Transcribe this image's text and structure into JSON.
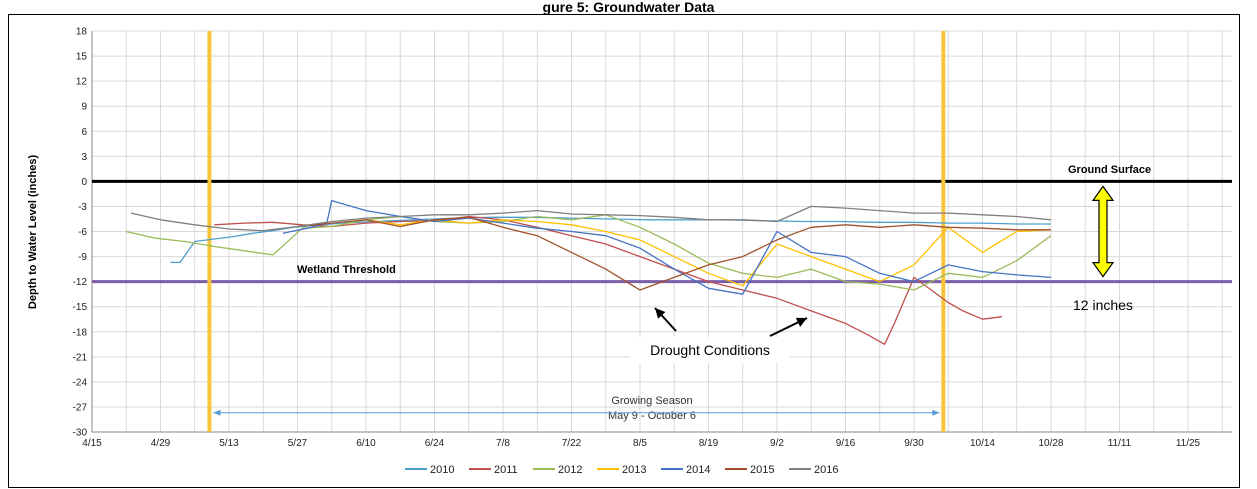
{
  "chart_data": {
    "type": "line",
    "title": "gure 5: Groundwater Data",
    "xlabel": "",
    "ylabel": "Depth to Water Level (inches)",
    "ylim": [
      -30,
      18
    ],
    "yticks": [
      18,
      15,
      12,
      9,
      6,
      3,
      0,
      -3,
      -6,
      -9,
      -12,
      -15,
      -18,
      -21,
      -24,
      -27,
      -30
    ],
    "xlim": [
      "4/15",
      "12/4"
    ],
    "xtick_labels": [
      "4/15",
      "4/29",
      "5/13",
      "5/27",
      "6/10",
      "6/24",
      "7/8",
      "7/22",
      "8/5",
      "8/19",
      "9/2",
      "9/16",
      "9/30",
      "10/14",
      "10/28",
      "11/11",
      "11/25"
    ],
    "grid": true,
    "legend_position": "bottom",
    "series": [
      {
        "name": "2010",
        "color": "#4f9fce",
        "x": [
          "5/1",
          "5/3",
          "5/6",
          "5/10",
          "5/14",
          "5/18",
          "5/22",
          "5/26",
          "5/30",
          "6/5",
          "6/12",
          "6/20",
          "6/28",
          "7/6",
          "7/14",
          "7/22",
          "7/30",
          "8/7",
          "8/14",
          "8/22",
          "8/30",
          "9/7",
          "9/15",
          "9/22",
          "9/30",
          "10/7",
          "10/14",
          "10/21",
          "10/28"
        ],
        "values": [
          -9.7,
          -9.7,
          -7.2,
          -6.9,
          -6.6,
          -6.2,
          -5.9,
          -5.5,
          -5.3,
          -5.0,
          -4.8,
          -4.6,
          -4.4,
          -4.3,
          -4.3,
          -4.4,
          -4.5,
          -4.6,
          -4.6,
          -4.6,
          -4.7,
          -4.8,
          -4.8,
          -4.9,
          -4.9,
          -5.0,
          -5.0,
          -5.1,
          -5.1
        ]
      },
      {
        "name": "2011",
        "color": "#c0504d",
        "x": [
          "5/10",
          "5/16",
          "5/22",
          "5/28",
          "6/3",
          "6/10",
          "6/17",
          "6/24",
          "7/1",
          "7/8",
          "7/15",
          "7/22",
          "7/29",
          "8/5",
          "8/12",
          "8/19",
          "8/26",
          "9/2",
          "9/9",
          "9/16",
          "9/21",
          "9/24",
          "9/26",
          "9/30",
          "10/7",
          "10/10",
          "10/14",
          "10/18"
        ],
        "values": [
          -5.2,
          -5.0,
          -4.9,
          -5.2,
          -5.4,
          -5.0,
          -4.8,
          -4.7,
          -4.2,
          -4.6,
          -5.5,
          -6.5,
          -7.5,
          -9.0,
          -10.5,
          -12.0,
          -13.0,
          -14.0,
          -15.5,
          -17.0,
          -18.5,
          -19.5,
          -17.0,
          -11.5,
          -14.5,
          -15.5,
          -16.5,
          -16.2
        ]
      },
      {
        "name": "2012",
        "color": "#9bbb59",
        "x": [
          "4/22",
          "4/28",
          "5/4",
          "5/10",
          "5/16",
          "5/22",
          "5/28",
          "6/3",
          "6/10",
          "6/17",
          "6/24",
          "7/1",
          "7/8",
          "7/15",
          "7/22",
          "7/29",
          "8/5",
          "8/12",
          "8/19",
          "8/26",
          "9/2",
          "9/9",
          "9/16",
          "9/23",
          "9/30",
          "10/7",
          "10/14",
          "10/21",
          "10/28"
        ],
        "values": [
          -6.0,
          -6.8,
          -7.2,
          -7.8,
          -8.3,
          -8.8,
          -5.6,
          -5.4,
          -4.6,
          -4.2,
          -4.8,
          -5.0,
          -4.8,
          -4.2,
          -4.6,
          -4.0,
          -5.5,
          -7.5,
          -9.8,
          -11.0,
          -11.5,
          -10.5,
          -12.0,
          -12.3,
          -13.0,
          -11.0,
          -11.5,
          -9.5,
          -6.5
        ]
      },
      {
        "name": "2013",
        "color": "#ffc000",
        "x": [
          "6/10",
          "6/17",
          "6/24",
          "7/1",
          "7/8",
          "7/15",
          "7/22",
          "7/29",
          "8/5",
          "8/12",
          "8/19",
          "8/26",
          "9/2",
          "9/9",
          "9/16",
          "9/23",
          "9/30",
          "10/7",
          "10/14",
          "10/21",
          "10/28"
        ],
        "values": [
          -4.6,
          -5.2,
          -4.6,
          -5.0,
          -4.6,
          -4.8,
          -5.2,
          -6.0,
          -7.0,
          -9.0,
          -11.0,
          -12.5,
          -7.5,
          -9.0,
          -10.5,
          -12.0,
          -10.0,
          -5.5,
          -8.5,
          -6.0,
          -5.8
        ]
      },
      {
        "name": "2014",
        "color": "#4472c4",
        "x": [
          "5/24",
          "5/30",
          "6/2",
          "6/3",
          "6/10",
          "6/17",
          "6/24",
          "7/1",
          "7/8",
          "7/15",
          "7/22",
          "7/29",
          "8/5",
          "8/12",
          "8/19",
          "8/26",
          "9/2",
          "9/9",
          "9/16",
          "9/23",
          "9/30",
          "10/7",
          "10/14",
          "10/21",
          "10/28"
        ],
        "values": [
          -6.2,
          -5.5,
          -5.0,
          -2.3,
          -3.5,
          -4.2,
          -4.8,
          -4.4,
          -5.0,
          -5.6,
          -6.0,
          -6.5,
          -8.0,
          -10.5,
          -12.8,
          -13.5,
          -6.0,
          -8.5,
          -9.0,
          -11.0,
          -12.0,
          -10.0,
          -10.8,
          -11.2,
          -11.5
        ]
      },
      {
        "name": "2015",
        "color": "#a0522d",
        "x": [
          "5/27",
          "6/3",
          "6/10",
          "6/17",
          "6/24",
          "7/1",
          "7/8",
          "7/15",
          "7/22",
          "7/29",
          "8/5",
          "8/12",
          "8/19",
          "8/26",
          "9/2",
          "9/9",
          "9/16",
          "9/23",
          "9/30",
          "10/7",
          "10/14",
          "10/21",
          "10/28"
        ],
        "values": [
          -5.4,
          -5.0,
          -4.6,
          -5.4,
          -4.6,
          -4.3,
          -5.5,
          -6.5,
          -8.5,
          -10.5,
          -13.0,
          -11.5,
          -10.0,
          -9.0,
          -7.0,
          -5.5,
          -5.2,
          -5.5,
          -5.2,
          -5.5,
          -5.6,
          -5.8,
          -5.8
        ]
      },
      {
        "name": "2016",
        "color": "#7f7f7f",
        "x": [
          "4/23",
          "4/29",
          "5/6",
          "5/13",
          "5/20",
          "5/27",
          "6/3",
          "6/10",
          "6/17",
          "6/24",
          "7/1",
          "7/8",
          "7/15",
          "7/22",
          "7/29",
          "8/5",
          "8/12",
          "8/19",
          "8/26",
          "9/2",
          "9/9",
          "9/16",
          "9/23",
          "9/30",
          "10/7",
          "10/14",
          "10/21",
          "10/28"
        ],
        "values": [
          -3.8,
          -4.6,
          -5.2,
          -5.7,
          -5.9,
          -5.4,
          -4.8,
          -4.4,
          -4.2,
          -4.0,
          -4.0,
          -3.8,
          -3.5,
          -3.9,
          -4.0,
          -4.1,
          -4.3,
          -4.6,
          -4.6,
          -4.8,
          -3.0,
          -3.2,
          -3.5,
          -3.8,
          -3.8,
          -4.0,
          -4.2,
          -4.6
        ]
      }
    ],
    "reference_lines": [
      {
        "name": "Ground Surface",
        "y": 0,
        "color": "#000000"
      },
      {
        "name": "Wetland Threshold",
        "y": -12,
        "color": "#7b5ea7"
      }
    ],
    "season_bounds": {
      "start": "5/9",
      "end": "10/6",
      "color": "#f7c43a"
    },
    "annotations": {
      "ground_surface": "Ground Surface",
      "wetland_threshold": "Wetland Threshold",
      "twelve_inches": "12 inches",
      "drought": "Drought Conditions",
      "growing_season_line1": "Growing Season",
      "growing_season_line2": "May 9 - October 6"
    },
    "arrow_color": "#ffff00"
  }
}
